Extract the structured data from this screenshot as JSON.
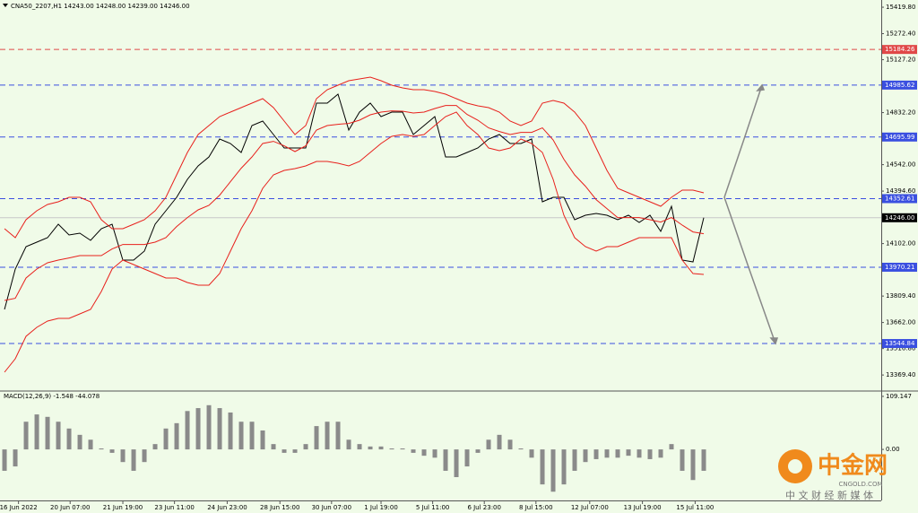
{
  "chart_data": [
    {
      "type": "line",
      "title": "CNA50_2207,H1  14243.00 14248.00 14239.00 14246.00",
      "xlim": [
        -0.42,
        81.5
      ],
      "ylim": [
        13285,
        15460
      ],
      "yticks": [
        {
          "value": 15419.8,
          "label": "15419.80"
        },
        {
          "value": 15272.4,
          "label": "15272.40"
        },
        {
          "value": 15127.2,
          "label": "15127.20"
        },
        {
          "value": 14832.2,
          "label": "14832.20"
        },
        {
          "value": 14542,
          "label": "14542.00"
        },
        {
          "value": 14394.6,
          "label": "14394.60"
        },
        {
          "value": 14102,
          "label": "14102.00"
        },
        {
          "value": 13809.4,
          "label": "13809.40"
        },
        {
          "value": 13662,
          "label": "13662.00"
        },
        {
          "value": 13516.8,
          "label": "13516.80"
        },
        {
          "value": 13369.4,
          "label": "13369.40"
        }
      ],
      "levels": [
        15184.26,
        14985.62,
        14695.99,
        14352.61,
        13970.21,
        13544.84
      ],
      "level_colors": [
        "#e04848",
        "#3a4fe0",
        "#3a4fe0",
        "#3a4fe0",
        "#3a4fe0",
        "#3a4fe0"
      ],
      "last": {
        "value": 14246,
        "label": "14246.00"
      },
      "series": [
        {
          "color": "#000000",
          "values": [
            13735,
            13960,
            14085,
            14110,
            14135,
            14210,
            14150,
            14160,
            14120,
            14185,
            14210,
            14010,
            14010,
            14060,
            14210,
            14285,
            14360,
            14460,
            14535,
            14585,
            14685,
            14660,
            14610,
            14760,
            14785,
            14710,
            14635,
            14635,
            14635,
            14885,
            14885,
            14935,
            14735,
            14835,
            14885,
            14810,
            14835,
            14835,
            14710,
            14760,
            14810,
            14585,
            14585,
            14610,
            14635,
            14685,
            14710,
            14660,
            14660,
            14685,
            14335,
            14360,
            14360,
            14235,
            14260,
            14270,
            14260,
            14235,
            14260,
            14220,
            14260,
            14170,
            14310,
            14010,
            14000,
            14246
          ]
        },
        {
          "color": "#e8201c",
          "values": [
            14185,
            14135,
            14235,
            14285,
            14320,
            14335,
            14360,
            14360,
            14335,
            14235,
            14185,
            14185,
            14210,
            14235,
            14285,
            14360,
            14485,
            14610,
            14710,
            14760,
            14810,
            14835,
            14860,
            14885,
            14910,
            14860,
            14785,
            14710,
            14760,
            14910,
            14960,
            14985,
            15010,
            15020,
            15030,
            15010,
            14985,
            14970,
            14960,
            14960,
            14950,
            14935,
            14910,
            14885,
            14870,
            14860,
            14835,
            14785,
            14760,
            14785,
            14885,
            14900,
            14885,
            14835,
            14760,
            14635,
            14510,
            14410,
            14385,
            14360,
            14335,
            14310,
            14360,
            14400,
            14400,
            14385
          ]
        },
        {
          "color": "#e8201c",
          "values": [
            13785,
            13797,
            13910,
            13960,
            13995,
            14010,
            14022,
            14035,
            14035,
            14035,
            14072,
            14097,
            14097,
            14097,
            14110,
            14135,
            14197,
            14247,
            14290,
            14315,
            14372,
            14447,
            14522,
            14585,
            14660,
            14672,
            14647,
            14615,
            14647,
            14735,
            14760,
            14767,
            14772,
            14790,
            14820,
            14835,
            14842,
            14840,
            14830,
            14835,
            14855,
            14872,
            14872,
            14822,
            14790,
            14747,
            14727,
            14710,
            14722,
            14722,
            14747,
            14680,
            14572,
            14485,
            14422,
            14347,
            14297,
            14247,
            14247,
            14247,
            14235,
            14222,
            14247,
            14205,
            14167,
            14157
          ]
        },
        {
          "color": "#e8201c",
          "values": [
            13385,
            13460,
            13585,
            13635,
            13670,
            13685,
            13685,
            13710,
            13735,
            13835,
            13960,
            14010,
            13985,
            13960,
            13935,
            13910,
            13910,
            13885,
            13870,
            13870,
            13935,
            14060,
            14185,
            14285,
            14410,
            14485,
            14510,
            14520,
            14535,
            14560,
            14560,
            14550,
            14535,
            14560,
            14610,
            14660,
            14700,
            14710,
            14700,
            14710,
            14760,
            14810,
            14835,
            14760,
            14710,
            14635,
            14620,
            14635,
            14685,
            14660,
            14610,
            14460,
            14260,
            14135,
            14085,
            14060,
            14085,
            14085,
            14110,
            14135,
            14135,
            14135,
            14135,
            14010,
            13935,
            13930
          ]
        }
      ]
    },
    {
      "type": "bar",
      "title": "MACD(12,26,9) -1.548 -44.078",
      "xlim": [
        -0.42,
        81.5
      ],
      "ylim": [
        -105,
        118.3
      ],
      "yticks": [
        109.147,
        {
          "value": 0,
          "label": "0.00"
        }
      ],
      "xticks": [
        {
          "value": 1.3,
          "label": "16 Jun 2022"
        },
        {
          "value": 6.1,
          "label": "20 Jun 07:00"
        },
        {
          "value": 11,
          "label": "21 Jun 19:00"
        },
        {
          "value": 15.8,
          "label": "23 Jun 11:00"
        },
        {
          "value": 20.7,
          "label": "24 Jun 23:00"
        },
        {
          "value": 25.6,
          "label": "28 Jun 15:00"
        },
        {
          "value": 30.4,
          "label": "30 Jun 07:00"
        },
        {
          "value": 35,
          "label": "1 Jul 19:00"
        },
        {
          "value": 39.8,
          "label": "5 Jul 11:00"
        },
        {
          "value": 44.6,
          "label": "6 Jul 23:00"
        },
        {
          "value": 49.4,
          "label": "8 Jul 15:00"
        },
        {
          "value": 54.4,
          "label": "12 Jul 07:00"
        },
        {
          "value": 59.3,
          "label": "13 Jul 19:00"
        },
        {
          "value": 64.2,
          "label": "15 Jul 11:00"
        }
      ],
      "color": "#8a8a8a",
      "values": [
        -44,
        -35,
        57,
        72,
        67,
        57,
        43,
        30,
        20,
        2,
        -7,
        -26,
        -44,
        -26,
        11,
        43,
        54,
        79,
        85,
        91,
        85,
        76,
        57,
        57,
        39,
        11,
        -7,
        -7,
        11,
        48,
        57,
        57,
        20,
        11,
        6,
        6,
        2,
        2,
        -7,
        -13,
        -17,
        -44,
        -57,
        -35,
        -7,
        20,
        30,
        20,
        2,
        -17,
        -72,
        -87,
        -72,
        -44,
        -26,
        -20,
        -17,
        -17,
        -13,
        -17,
        -20,
        -17,
        11,
        -44,
        -63,
        -44
      ]
    }
  ],
  "logo": {
    "name": "中金网",
    "site": "CNGOLD.COM",
    "tagline": "中 文 财 经 新 媒 体"
  }
}
